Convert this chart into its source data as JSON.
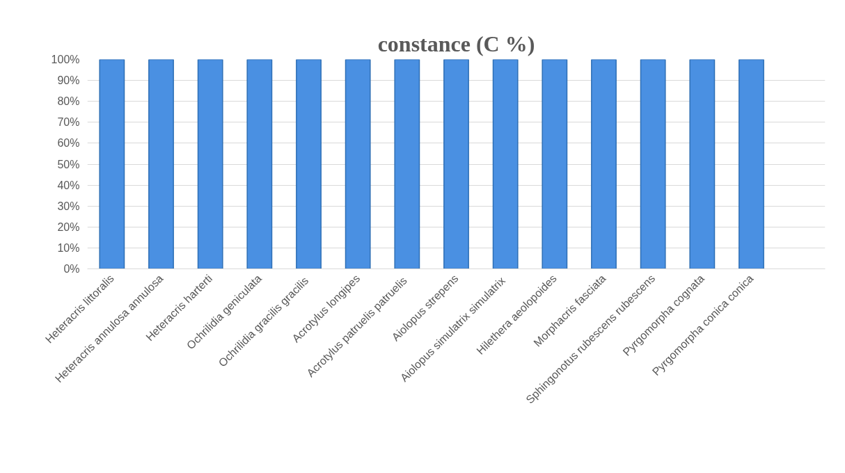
{
  "chart_data": {
    "type": "bar",
    "title": "constance (C %)",
    "categories": [
      "Heteracris littoralis",
      "Heteracris annulosa annulosa",
      "Heteracris harterti",
      "Ochrilidia geniculata",
      "Ochrilidia gracilis  gracilis",
      "Acrotylus longipes",
      "Acrotylus patruelis  patruelis",
      "Aiolopus strepens",
      "Aiolopus simulatrix  simulatrix",
      "Hilethera aeolopoides",
      "Morphacris fasciata",
      "Sphingonotus rubescens rubescens",
      "Pyrgomorpha cognata",
      "Pyrgomorpha conica conica",
      null
    ],
    "values": [
      100,
      100,
      100,
      100,
      100,
      100,
      100,
      100,
      100,
      100,
      100,
      100,
      100,
      100,
      null
    ],
    "color": "#4a90e2",
    "ylim": [
      0,
      100
    ],
    "yticks": [
      {
        "value": 0,
        "label": "0%"
      },
      {
        "value": 10,
        "label": "10%"
      },
      {
        "value": 20,
        "label": "20%"
      },
      {
        "value": 30,
        "label": "30%"
      },
      {
        "value": 40,
        "label": "40%"
      },
      {
        "value": 50,
        "label": "50%"
      },
      {
        "value": 60,
        "label": "60%"
      },
      {
        "value": 70,
        "label": "70%"
      },
      {
        "value": 80,
        "label": "80%"
      },
      {
        "value": 90,
        "label": "90%"
      },
      {
        "value": 100,
        "label": "100%"
      }
    ],
    "grid": "y"
  }
}
